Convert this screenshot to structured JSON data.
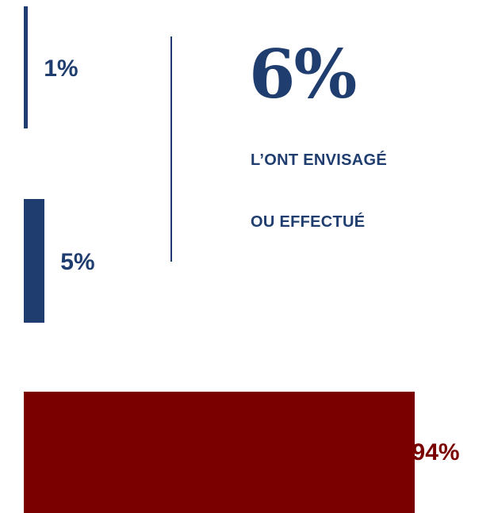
{
  "colors": {
    "navy": "#1f3d6e",
    "dark_red": "#7a0000",
    "divider": "#1f3d6e"
  },
  "headline": {
    "value": "6%",
    "line1": "L’ONT ENVISAGÉ",
    "line2": "OU EFFECTUÉ"
  },
  "chart_data": {
    "type": "bar",
    "orientation": "horizontal",
    "categories": [
      "",
      "",
      ""
    ],
    "values": [
      1,
      5,
      94
    ],
    "labels": [
      "1%",
      "5%",
      "94%"
    ],
    "colors": [
      "#1f3d6e",
      "#1f3d6e",
      "#7a0000"
    ],
    "xlim": [
      0,
      100
    ],
    "grid": false,
    "title": "",
    "xlabel": "",
    "ylabel": ""
  }
}
